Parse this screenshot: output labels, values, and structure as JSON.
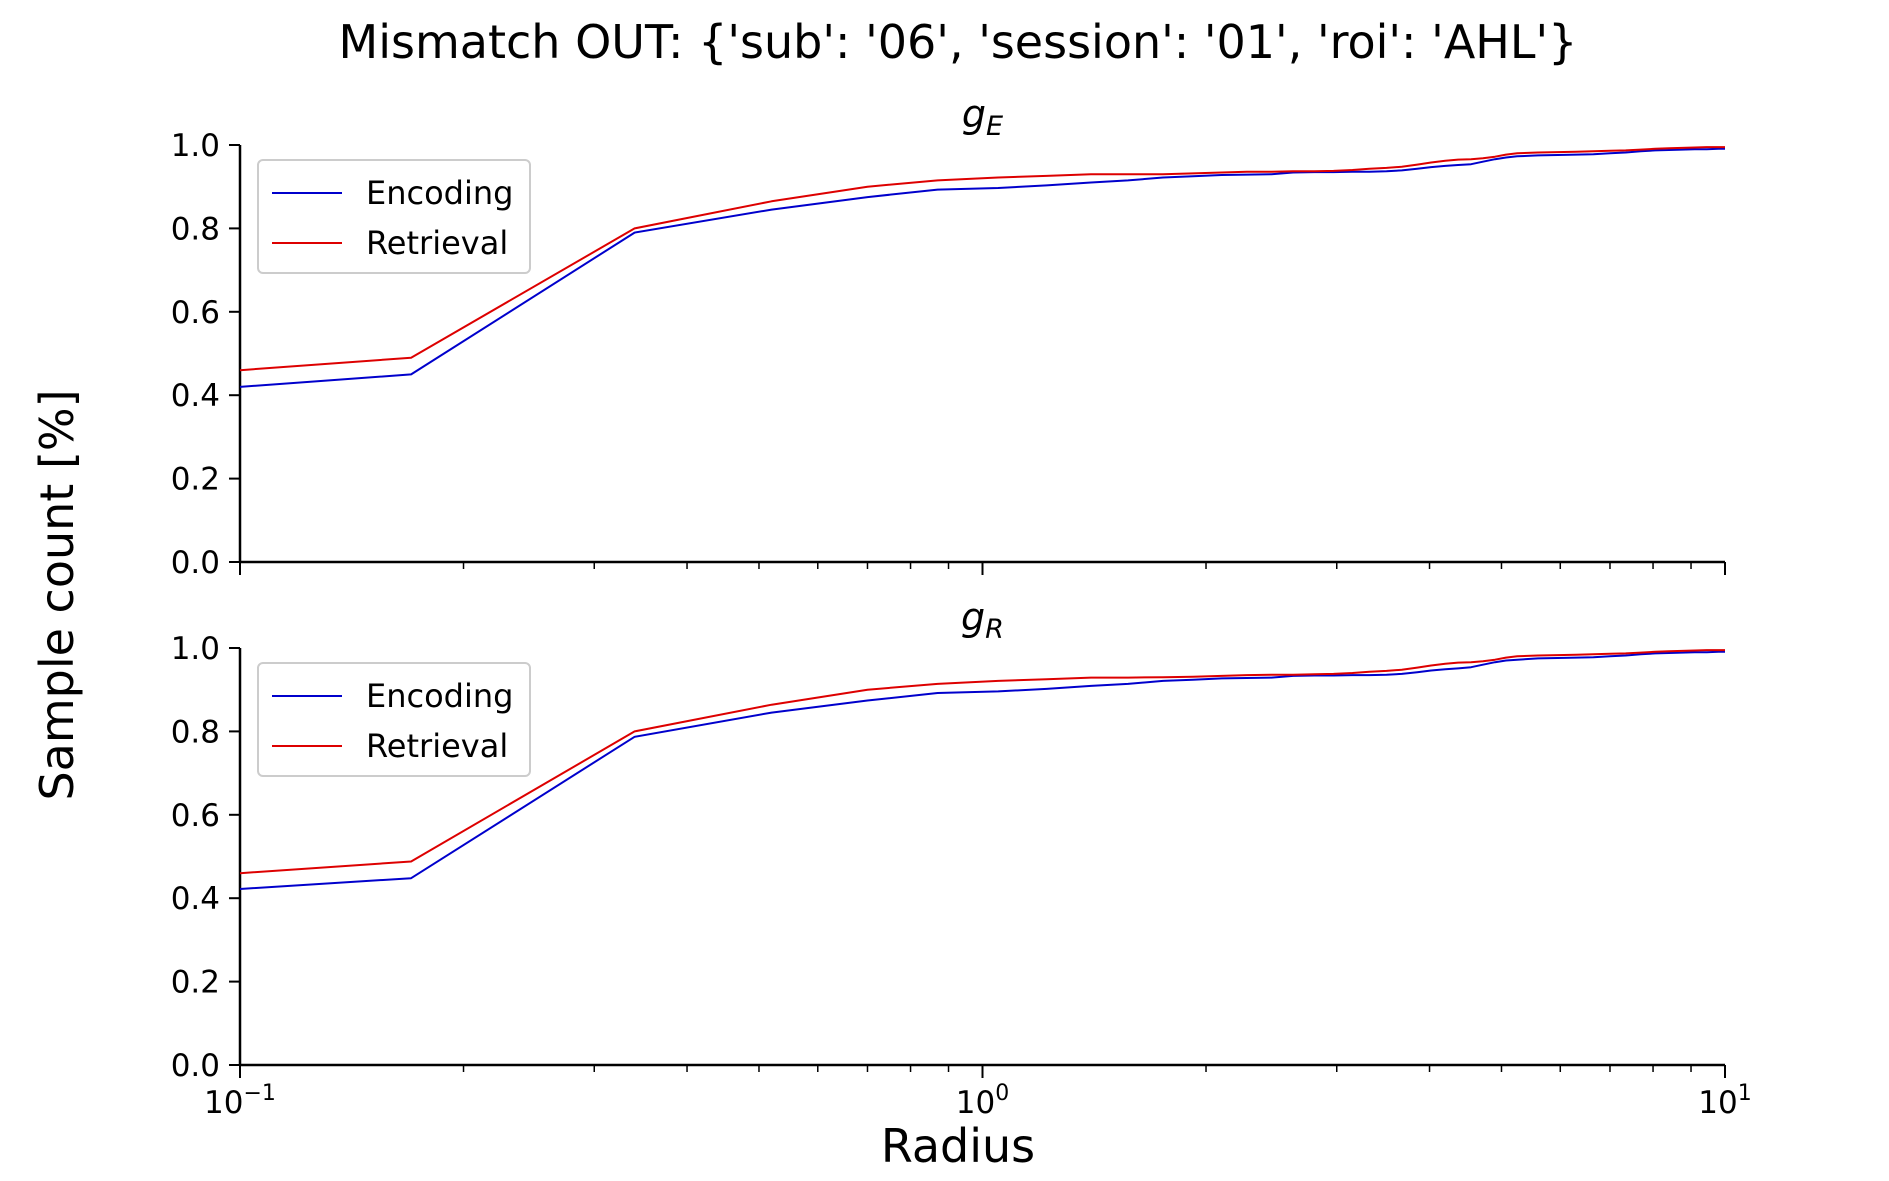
{
  "figure": {
    "suptitle": "Mismatch OUT: {'sub': '06', 'session': '01', 'roi': 'AHL'}",
    "xlabel": "Radius",
    "ylabel": "Sample count [%]"
  },
  "colors": {
    "encoding": "#0000cc",
    "retrieval": "#dd0000"
  },
  "chart_data": [
    {
      "type": "line",
      "title_base": "g",
      "title_sub": "E",
      "xscale": "log",
      "xlim": [
        0.1,
        10
      ],
      "ylim": [
        0.0,
        1.0
      ],
      "yticks": [
        "0.0",
        "0.2",
        "0.4",
        "0.6",
        "0.8",
        "1.0"
      ],
      "xticks": [],
      "legend": "upper-left",
      "x": [
        0.1,
        0.17,
        0.34,
        0.52,
        0.7,
        0.87,
        1.05,
        1.22,
        1.4,
        1.57,
        1.75,
        1.92,
        2.1,
        2.27,
        2.45,
        2.62,
        2.8,
        2.97,
        3.15,
        3.32,
        3.5,
        3.67,
        3.85,
        4.02,
        4.2,
        4.37,
        4.55,
        4.72,
        4.9,
        5.07,
        5.25,
        5.6,
        5.95,
        6.3,
        6.65,
        7.0,
        7.35,
        7.7,
        8.05,
        8.4,
        8.75,
        9.1,
        9.45,
        9.8,
        10.0
      ],
      "series": [
        {
          "name": "Encoding",
          "color": "#0000cc",
          "values": [
            0.42,
            0.45,
            0.79,
            0.845,
            0.875,
            0.893,
            0.897,
            0.903,
            0.91,
            0.915,
            0.922,
            0.925,
            0.928,
            0.929,
            0.93,
            0.934,
            0.935,
            0.935,
            0.936,
            0.936,
            0.937,
            0.939,
            0.943,
            0.947,
            0.95,
            0.952,
            0.954,
            0.96,
            0.966,
            0.97,
            0.973,
            0.975,
            0.976,
            0.977,
            0.978,
            0.98,
            0.982,
            0.985,
            0.987,
            0.988,
            0.989,
            0.99,
            0.99,
            0.991,
            0.991
          ]
        },
        {
          "name": "Retrieval",
          "color": "#dd0000",
          "values": [
            0.46,
            0.49,
            0.8,
            0.865,
            0.9,
            0.915,
            0.922,
            0.926,
            0.93,
            0.93,
            0.93,
            0.932,
            0.934,
            0.936,
            0.936,
            0.937,
            0.937,
            0.938,
            0.94,
            0.943,
            0.945,
            0.948,
            0.953,
            0.958,
            0.962,
            0.965,
            0.966,
            0.968,
            0.972,
            0.977,
            0.98,
            0.982,
            0.983,
            0.984,
            0.985,
            0.986,
            0.987,
            0.989,
            0.991,
            0.992,
            0.993,
            0.994,
            0.995,
            0.995,
            0.995
          ]
        }
      ]
    },
    {
      "type": "line",
      "title_base": "g",
      "title_sub": "R",
      "xscale": "log",
      "xlim": [
        0.1,
        10
      ],
      "ylim": [
        0.0,
        1.0
      ],
      "yticks": [
        "0.0",
        "0.2",
        "0.4",
        "0.6",
        "0.8",
        "1.0"
      ],
      "xticks": [
        {
          "base": "10",
          "exp": "−1"
        },
        {
          "base": "10",
          "exp": "0"
        },
        {
          "base": "10",
          "exp": "1"
        }
      ],
      "legend": "upper-left",
      "x": [
        0.1,
        0.17,
        0.34,
        0.52,
        0.7,
        0.87,
        1.05,
        1.22,
        1.4,
        1.57,
        1.75,
        1.92,
        2.1,
        2.27,
        2.45,
        2.62,
        2.8,
        2.97,
        3.15,
        3.32,
        3.5,
        3.67,
        3.85,
        4.02,
        4.2,
        4.37,
        4.55,
        4.72,
        4.9,
        5.07,
        5.25,
        5.6,
        5.95,
        6.3,
        6.65,
        7.0,
        7.35,
        7.7,
        8.05,
        8.4,
        8.75,
        9.1,
        9.45,
        9.8,
        10.0
      ],
      "series": [
        {
          "name": "Encoding",
          "color": "#0000cc",
          "values": [
            0.422,
            0.448,
            0.787,
            0.845,
            0.874,
            0.892,
            0.896,
            0.902,
            0.909,
            0.914,
            0.921,
            0.924,
            0.927,
            0.928,
            0.929,
            0.933,
            0.934,
            0.934,
            0.935,
            0.935,
            0.936,
            0.938,
            0.942,
            0.946,
            0.949,
            0.951,
            0.954,
            0.96,
            0.966,
            0.97,
            0.972,
            0.975,
            0.976,
            0.977,
            0.978,
            0.98,
            0.982,
            0.985,
            0.987,
            0.988,
            0.989,
            0.99,
            0.99,
            0.991,
            0.991
          ]
        },
        {
          "name": "Retrieval",
          "color": "#dd0000",
          "values": [
            0.46,
            0.488,
            0.8,
            0.864,
            0.9,
            0.914,
            0.921,
            0.925,
            0.929,
            0.929,
            0.93,
            0.931,
            0.933,
            0.935,
            0.936,
            0.936,
            0.937,
            0.938,
            0.94,
            0.943,
            0.945,
            0.948,
            0.953,
            0.958,
            0.962,
            0.965,
            0.966,
            0.968,
            0.972,
            0.977,
            0.98,
            0.982,
            0.983,
            0.984,
            0.985,
            0.986,
            0.987,
            0.989,
            0.991,
            0.992,
            0.993,
            0.994,
            0.995,
            0.995,
            0.995
          ]
        }
      ]
    }
  ]
}
